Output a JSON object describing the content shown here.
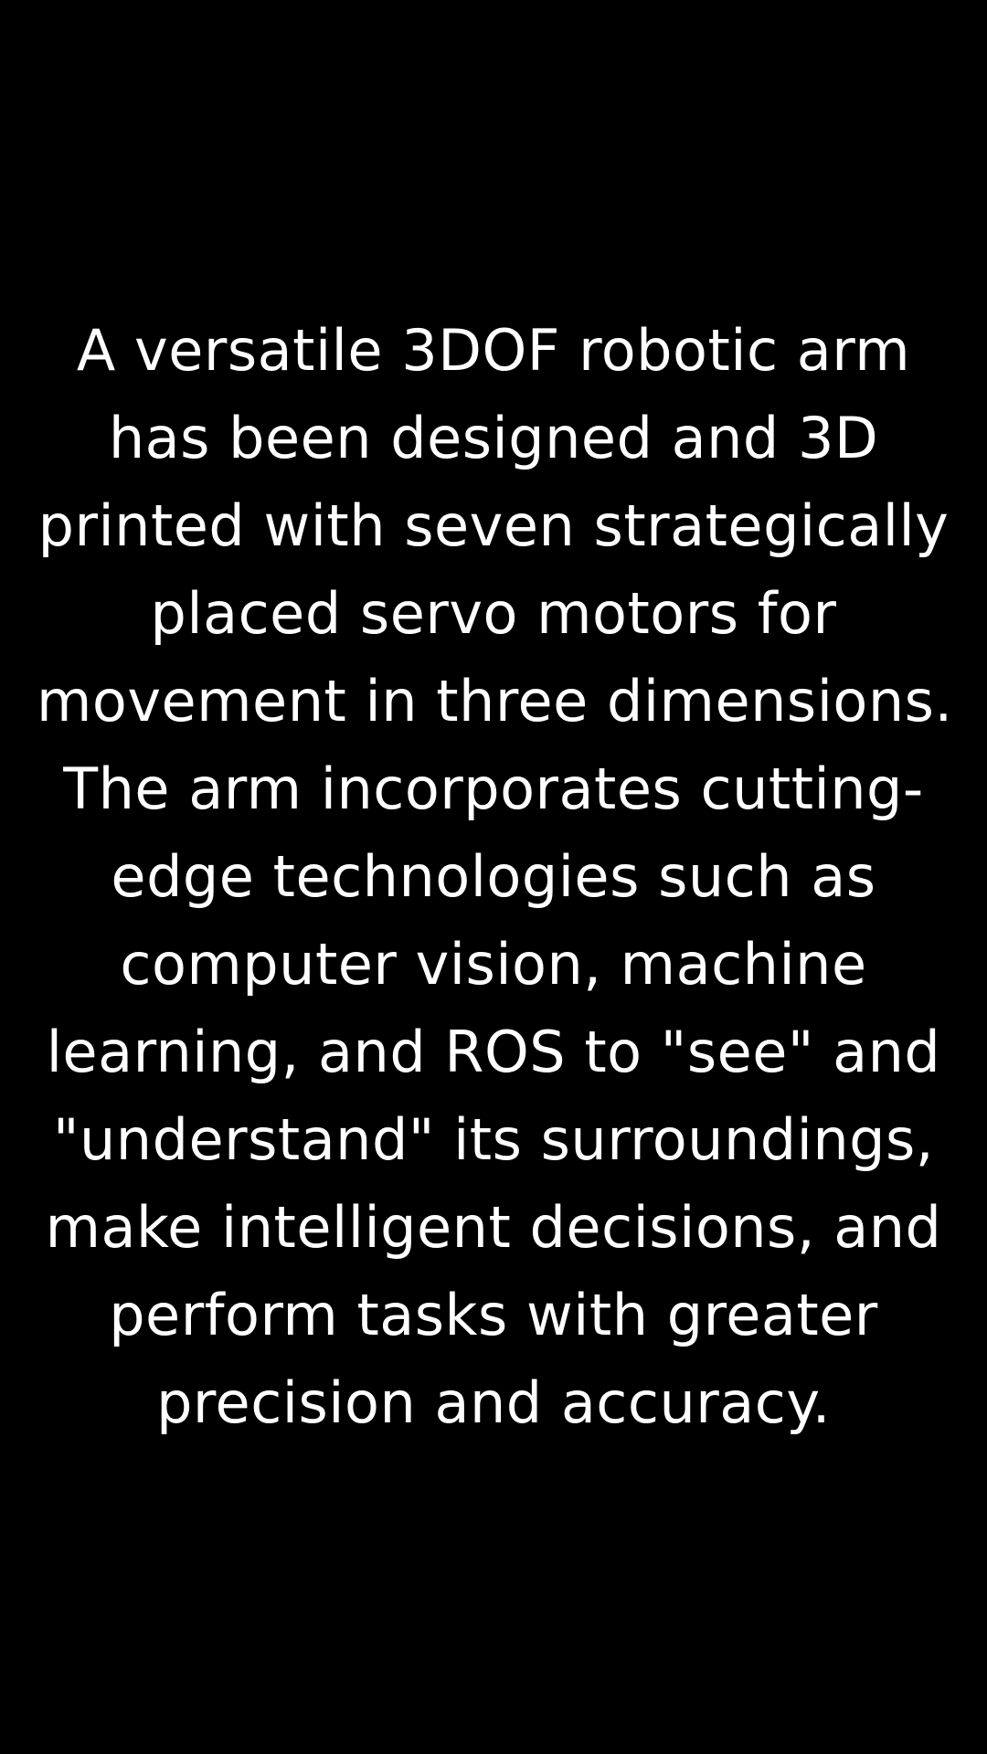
{
  "colors": {
    "background": "#000000",
    "text": "#ffffff"
  },
  "caption": {
    "lines": [
      "A versatile 3DOF robotic arm",
      "has been designed and 3D",
      "printed with seven strategically",
      "placed servo motors for",
      "movement in three dimensions.",
      "The arm incorporates cutting-",
      "edge technologies such as",
      "computer vision, machine",
      "learning, and ROS to \"see\" and",
      "\"understand\" its surroundings,",
      "make intelligent decisions, and",
      "perform tasks with greater",
      "precision and accuracy."
    ]
  }
}
